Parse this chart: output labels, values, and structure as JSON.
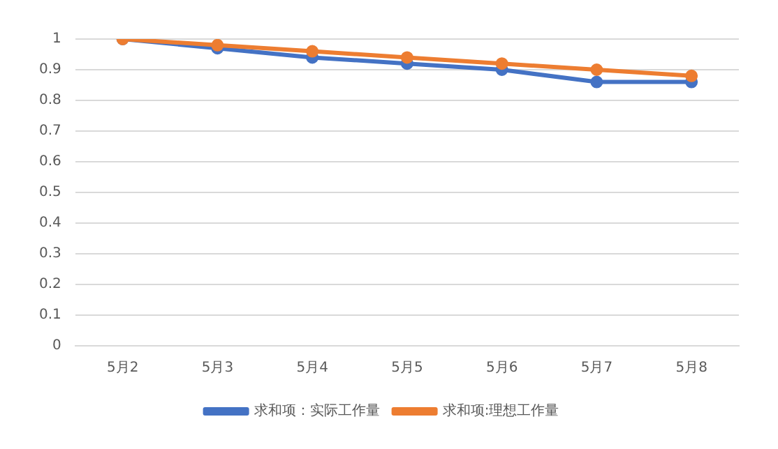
{
  "chart_data": {
    "type": "line",
    "categories": [
      "5月2",
      "5月3",
      "5月4",
      "5月5",
      "5月6",
      "5月7",
      "5月8"
    ],
    "series": [
      {
        "name": "求和项：实际工作量",
        "color": "#4472c4",
        "values": [
          1,
          0.97,
          0.94,
          0.92,
          0.9,
          0.86,
          0.86
        ]
      },
      {
        "name": "求和项:理想工作量",
        "color": "#ed7d31",
        "values": [
          1,
          0.98,
          0.96,
          0.94,
          0.92,
          0.9,
          0.88
        ]
      }
    ],
    "ylim": [
      0,
      1
    ],
    "yticks": [
      0,
      0.1,
      0.2,
      0.3,
      0.4,
      0.5,
      0.6,
      0.7,
      0.8,
      0.9,
      1
    ],
    "grid": "y",
    "legend": "bottom",
    "marker": "circle",
    "line_style": "solid"
  }
}
